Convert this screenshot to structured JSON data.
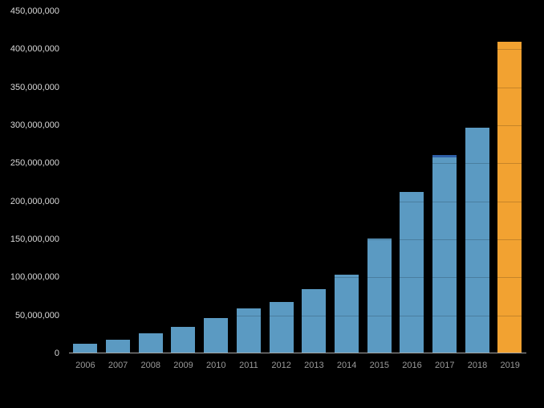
{
  "chart_data": {
    "type": "bar",
    "title": "",
    "xlabel": "",
    "ylabel": "",
    "categories": [
      "2006",
      "2007",
      "2008",
      "2009",
      "2010",
      "2011",
      "2012",
      "2013",
      "2014",
      "2015",
      "2016",
      "2017",
      "2018",
      "2019"
    ],
    "values": [
      13000000,
      18000000,
      26000000,
      35000000,
      47000000,
      59000000,
      68000000,
      84000000,
      104000000,
      151000000,
      212000000,
      261000000,
      297000000,
      410000000
    ],
    "ylim": [
      0,
      450000000
    ],
    "ytick_step": 50000000,
    "ytick_labels": [
      "0",
      "50,000,000",
      "100,000,000",
      "150,000,000",
      "200,000,000",
      "250,000,000",
      "300,000,000",
      "350,000,000",
      "400,000,000",
      "450,000,000"
    ],
    "grid": true,
    "legend": "none",
    "background_color": "#000000",
    "bar_color": "#5b9ac2",
    "highlight": {
      "category": "2019",
      "color": "#f2a231"
    },
    "accent_top": {
      "category": "2017",
      "color": "#2e5ea6"
    },
    "axis_line_color": "#a6a6a6",
    "gridline_color": "rgba(0,0,0,0.18)",
    "ytick_label_color": "#d9d9d9",
    "xtick_label_color": "#9a9a9a"
  }
}
